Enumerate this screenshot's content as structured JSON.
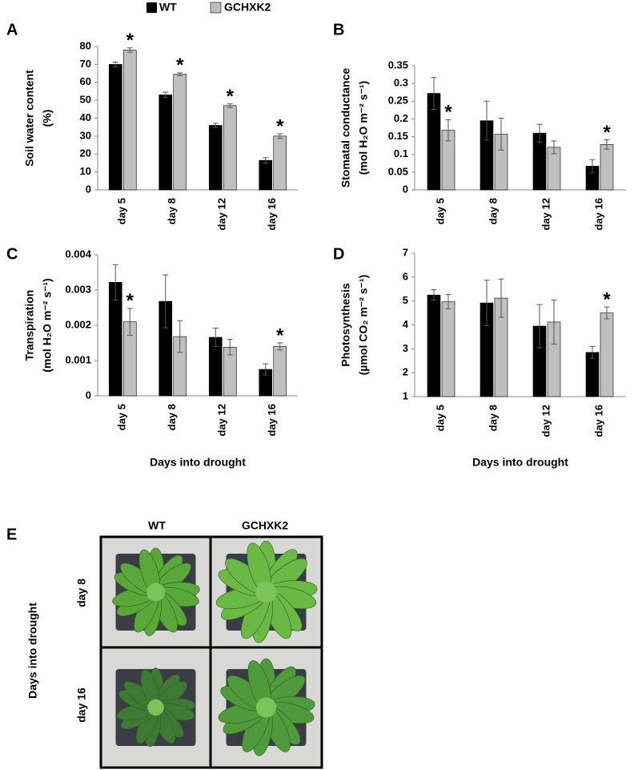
{
  "chart_data": [
    {
      "type": "bar",
      "label": "A",
      "y_label": [
        "Soil water content",
        "(%)"
      ],
      "categories": [
        "day 5",
        "day 8",
        "day 12",
        "day 16"
      ],
      "series": [
        {
          "name": "WT",
          "color": "#000000",
          "values": [
            70,
            53,
            36,
            16.5
          ],
          "errors": [
            1.3,
            1.5,
            1.2,
            1.5
          ],
          "markers": [
            null,
            null,
            null,
            null
          ]
        },
        {
          "name": "GCHXK2",
          "color": "#bfbfbf",
          "values": [
            78,
            64.5,
            47,
            30
          ],
          "errors": [
            1.2,
            0.8,
            1,
            1.3
          ],
          "markers": [
            "*",
            "*",
            "*",
            "*"
          ]
        }
      ],
      "ylim": [
        0,
        80
      ],
      "yticks": [
        0,
        10,
        20,
        30,
        40,
        50,
        60,
        70,
        80
      ]
    },
    {
      "type": "bar",
      "label": "B",
      "y_label": [
        "Stomatal conductance",
        "(mol H₂O m⁻² s⁻¹)"
      ],
      "categories": [
        "day 5",
        "day 8",
        "day 12",
        "day 16"
      ],
      "series": [
        {
          "color": "#000000",
          "values": [
            0.272,
            0.195,
            0.16,
            0.067
          ],
          "errors": [
            0.045,
            0.055,
            0.025,
            0.018
          ],
          "markers": [
            null,
            null,
            null,
            null
          ]
        },
        {
          "color": "#bfbfbf",
          "values": [
            0.168,
            0.157,
            0.12,
            0.128
          ],
          "errors": [
            0.03,
            0.045,
            0.018,
            0.013
          ],
          "markers": [
            "*",
            null,
            null,
            "*"
          ]
        }
      ],
      "ylim": [
        0,
        0.35
      ],
      "yticks": [
        0,
        0.05,
        0.1,
        0.15,
        0.2,
        0.25,
        0.3,
        0.35
      ]
    },
    {
      "type": "bar",
      "label": "C",
      "y_label": [
        "Transpiration",
        "(mol H₂O m⁻² s⁻¹)"
      ],
      "x_label": "Days into drought",
      "categories": [
        "day 5",
        "day 8",
        "day 12",
        "day 16"
      ],
      "series": [
        {
          "color": "#000000",
          "values": [
            0.00322,
            0.00268,
            0.00166,
            0.00075
          ],
          "errors": [
            0.0005,
            0.00075,
            0.00026,
            0.00016
          ],
          "markers": [
            null,
            null,
            null,
            null
          ]
        },
        {
          "color": "#bfbfbf",
          "values": [
            0.0021,
            0.00168,
            0.00138,
            0.0014
          ],
          "errors": [
            0.00038,
            0.00045,
            0.00022,
            0.0001
          ],
          "markers": [
            "*",
            null,
            null,
            "*"
          ]
        }
      ],
      "ylim": [
        0,
        0.004
      ],
      "yticks": [
        0,
        0.001,
        0.002,
        0.003,
        0.004
      ]
    },
    {
      "type": "bar",
      "label": "D",
      "y_label": [
        "Photosynthesis",
        "(µmol CO₂ m⁻² s⁻¹)"
      ],
      "x_label": "Days into drought",
      "categories": [
        "day 5",
        "day 8",
        "day 12",
        "day 16"
      ],
      "series": [
        {
          "color": "#000000",
          "values": [
            5.25,
            4.92,
            3.95,
            2.85
          ],
          "errors": [
            0.22,
            0.95,
            0.9,
            0.25
          ],
          "markers": [
            null,
            null,
            null,
            null
          ]
        },
        {
          "color": "#bfbfbf",
          "values": [
            4.97,
            5.12,
            4.12,
            4.5
          ],
          "errors": [
            0.3,
            0.8,
            0.92,
            0.25
          ],
          "markers": [
            null,
            null,
            null,
            "*"
          ]
        }
      ],
      "ylim": [
        1,
        7
      ],
      "yticks": [
        1,
        2,
        3,
        4,
        5,
        6,
        7
      ]
    }
  ],
  "panel_e": {
    "label": "E",
    "columns": [
      "WT",
      "GCHXK2"
    ],
    "rows": [
      "day 8",
      "day 16"
    ],
    "axis_label": "Days into drought"
  }
}
